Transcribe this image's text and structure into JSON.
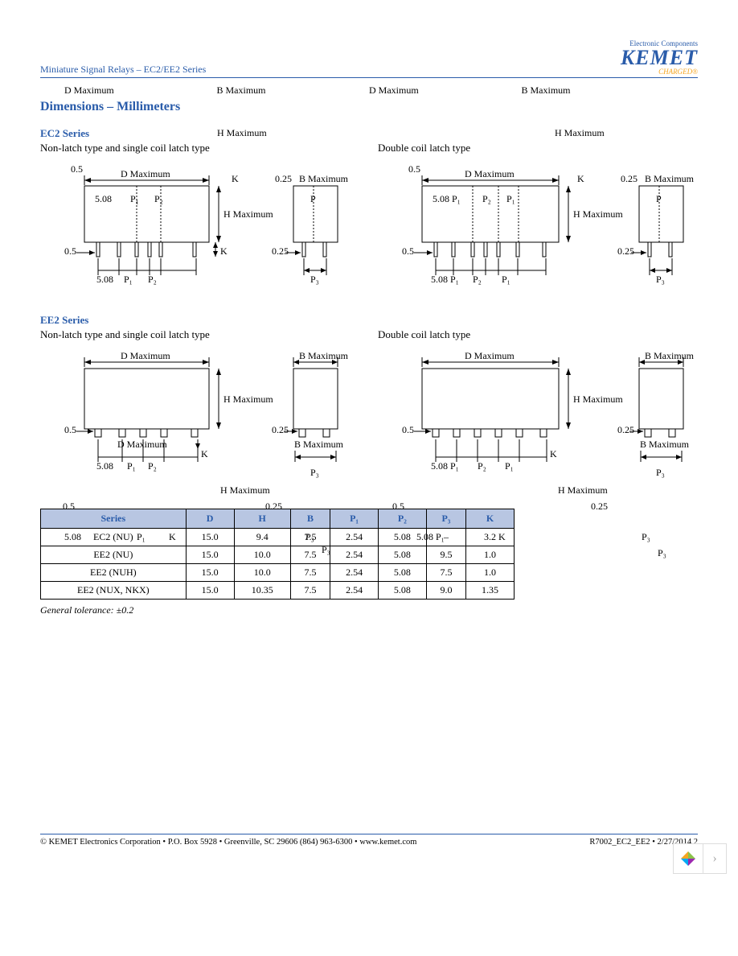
{
  "header": {
    "doc_title": "Miniature Signal Relays – EC2/EE2 Series",
    "logo_small": "Electronic Components",
    "logo_name": "KEMET",
    "logo_charged": "CHARGED®"
  },
  "ghost_top": [
    "D Maximum",
    "B Maximum",
    "D Maximum",
    "B Maximum"
  ],
  "section_title": "Dimensions – Millimeters",
  "ec2": {
    "title": "EC2 Series",
    "hmax_label": "H Maximum",
    "left_sub": "Non-latch type and single coil latch type",
    "right_sub": "Double coil latch type"
  },
  "ee2": {
    "title": "EE2 Series",
    "left_sub": "Non-latch type and single coil latch type",
    "right_sub": "Double coil latch type"
  },
  "dim_labels": {
    "D": "D Maximum",
    "B": "B Maximum",
    "H": "H Maximum",
    "K": "K",
    "p508": "5.08",
    "p05": "0.5",
    "p025": "0.25",
    "P": "P",
    "P1": "P₁",
    "P2": "P₂",
    "P3": "P₃"
  },
  "table": {
    "headers": [
      "Series",
      "D",
      "H",
      "B",
      "P₁",
      "P₂",
      "P₃",
      "K"
    ],
    "rows": [
      [
        "EC2 (NU)",
        "15.0",
        "9.4",
        "7.5",
        "2.54",
        "5.08",
        "–",
        "3.2"
      ],
      [
        "EE2 (NU)",
        "15.0",
        "10.0",
        "7.5",
        "2.54",
        "5.08",
        "9.5",
        "1.0"
      ],
      [
        "EE2 (NUH)",
        "15.0",
        "10.0",
        "7.5",
        "2.54",
        "5.08",
        "7.5",
        "1.0"
      ],
      [
        "EE2 (NUX, NKX)",
        "15.0",
        "10.35",
        "7.5",
        "2.54",
        "5.08",
        "9.0",
        "1.35"
      ]
    ]
  },
  "ghost_mid": {
    "row1": [
      "0.5",
      "0.25",
      "0.5",
      "0.25"
    ],
    "row2_left": "5.08",
    "labels": [
      "D Maximum",
      "B Maximum",
      "H Maximum",
      "5.08 P",
      "K",
      "P",
      "P₃"
    ]
  },
  "tolerance": "General tolerance: ±0.2",
  "footer": {
    "left": "© KEMET Electronics Corporation • P.O. Box 5928 • Greenville, SC 29606 (864) 963-6300 • www.kemet.com",
    "right": "R7002_EC2_EE2 • 2/27/2014    2"
  },
  "colors": {
    "brand_blue": "#2a5caa",
    "brand_orange": "#f5a623",
    "table_header_bg": "#b8c6e2"
  }
}
